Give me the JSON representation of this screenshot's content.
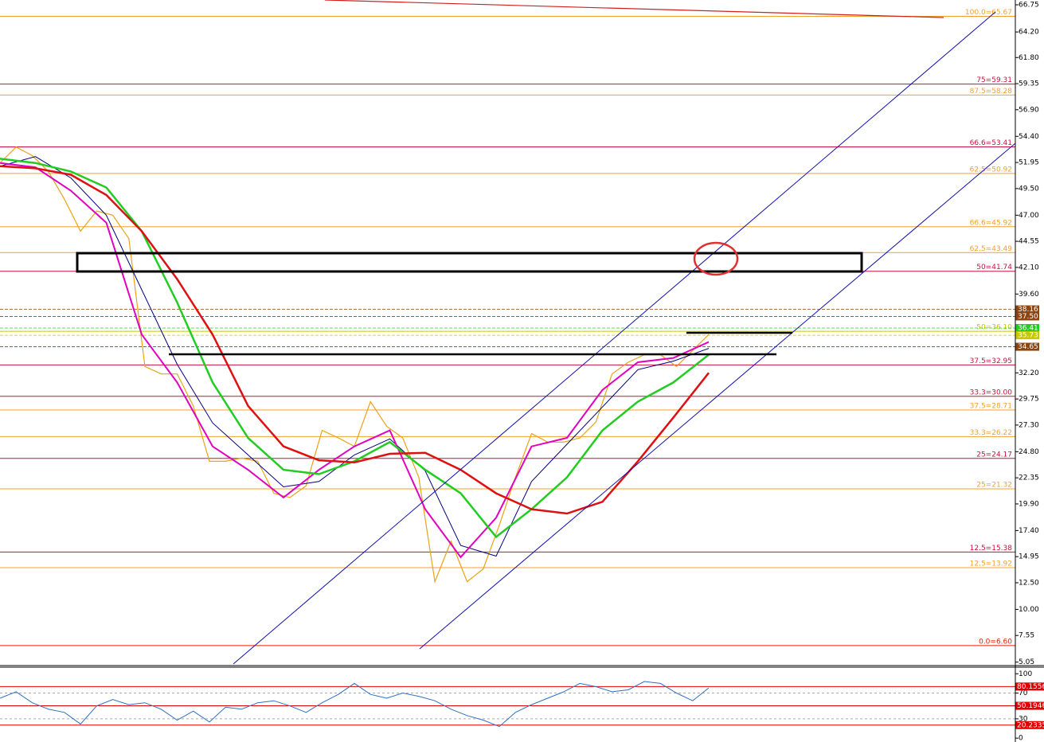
{
  "chart_data": [
    {
      "type": "line",
      "ylim": [
        4.8,
        67.2
      ],
      "yticks": [
        66.75,
        {
          "value": 64.2,
          "label": "64.20"
        },
        {
          "value": 61.8,
          "label": "61.80"
        },
        59.35,
        {
          "value": 56.9,
          "label": "56.90"
        },
        {
          "value": 54.4,
          "label": "54.40"
        },
        51.95,
        {
          "value": 49.5,
          "label": "49.50"
        },
        {
          "value": 47,
          "label": "47.00"
        },
        44.55,
        {
          "value": 42.1,
          "label": "42.10"
        },
        {
          "value": 39.6,
          "label": "39.60"
        },
        {
          "value": 32.2,
          "label": "32.20"
        },
        29.75,
        {
          "value": 27.3,
          "label": "27.30"
        },
        {
          "value": 24.8,
          "label": "24.80"
        },
        22.35,
        {
          "value": 19.9,
          "label": "19.90"
        },
        {
          "value": 17.4,
          "label": "17.40"
        },
        14.95,
        {
          "value": 12.5,
          "label": "12.50"
        },
        {
          "value": 10,
          "label": "10.00"
        },
        7.55,
        5.05
      ],
      "series": [
        {
          "color": "#e8a317",
          "width": 1.2,
          "values": [
            51.9,
            53.4,
            52.6,
            51.1,
            48.5,
            45.5,
            47.4,
            47.0,
            44.8,
            32.8,
            32.1,
            32.1,
            29.1,
            23.9,
            23.9,
            24.2,
            23.9,
            20.9,
            20.5,
            21.6,
            26.8,
            26.1,
            25.3,
            29.5,
            27.2,
            26.1,
            22.4,
            12.6,
            16.4,
            12.6,
            13.8,
            17.9,
            22.4,
            26.5,
            25.7,
            25.7,
            26.1,
            27.6,
            32.1,
            33.2,
            33.9,
            33.9,
            32.8,
            34.3,
            35.8
          ]
        },
        {
          "color": "#000080",
          "width": 1,
          "values": [
            51.6,
            52.5,
            50.5,
            47.0,
            40.0,
            33.0,
            27.5,
            24.5,
            21.5,
            22.0,
            24.5,
            26.0,
            23.0,
            16.0,
            15.0,
            22.0,
            25.5,
            29.0,
            32.5,
            33.3,
            34.5
          ]
        },
        {
          "color": "#e000c0",
          "width": 2,
          "values": [
            51.9,
            51.5,
            49.3,
            46.3,
            35.8,
            31.3,
            25.3,
            23.1,
            20.5,
            23.1,
            25.3,
            26.8,
            19.4,
            14.9,
            18.6,
            25.3,
            26.1,
            30.6,
            33.2,
            33.6,
            35.1
          ]
        },
        {
          "color": "#22cc22",
          "width": 2.5,
          "values": [
            52.3,
            51.9,
            51.1,
            49.6,
            45.5,
            38.8,
            31.3,
            26.1,
            23.1,
            22.7,
            23.9,
            25.7,
            23.1,
            20.9,
            16.8,
            19.4,
            22.4,
            26.8,
            29.5,
            31.3,
            33.9
          ]
        },
        {
          "color": "#dd1111",
          "width": 2.5,
          "values": [
            51.6,
            51.4,
            50.8,
            48.9,
            45.5,
            41.0,
            35.8,
            29.1,
            25.3,
            24.0,
            23.8,
            24.6,
            24.7,
            23.1,
            20.9,
            19.4,
            19.0,
            20.1,
            23.9,
            28.0,
            32.2
          ]
        }
      ],
      "levels": [
        {
          "label": "100.0=65.67",
          "value": 65.67,
          "color": "#f0a030"
        },
        {
          "label": "75=59.31",
          "value": 59.31,
          "color": "#c8103c"
        },
        {
          "label": "87.5=58.28",
          "value": 58.28,
          "color": "#f0a030"
        },
        {
          "label": "66.6=53.41",
          "value": 53.41,
          "color": "#c8103c"
        },
        {
          "label": "62.5=50.92",
          "value": 50.92,
          "color": "#f0a030"
        },
        {
          "label": "66.6=45.92",
          "value": 45.92,
          "color": "#f0a030"
        },
        {
          "label": "62.5=43.49",
          "value": 43.49,
          "color": "#f0a030"
        },
        {
          "label": "50=41.74",
          "value": 41.74,
          "color": "#c8103c"
        },
        {
          "label": "50=36.10",
          "value": 36.1,
          "color": "#c8c800"
        },
        {
          "label": "37.5=32.95",
          "value": 32.95,
          "color": "#c8103c"
        },
        {
          "label": "33.3=30.00",
          "value": 30,
          "color": "#c8103c"
        },
        {
          "label": "37.5=28.71",
          "value": 28.71,
          "color": "#f0a030"
        },
        {
          "label": "33.3=26.22",
          "value": 26.22,
          "color": "#f0a030"
        },
        {
          "label": "25=24.17",
          "value": 24.17,
          "color": "#c8103c"
        },
        {
          "label": "25=21.32",
          "value": 21.32,
          "color": "#f0a030"
        },
        {
          "label": "12.5=15.38",
          "value": 15.38,
          "color": "#c8103c"
        },
        {
          "label": "12.5=13.92",
          "value": 13.92,
          "color": "#f0a030"
        },
        {
          "label": "0.0=6.60",
          "value": 6.6,
          "color": "#e02000"
        }
      ],
      "price_labels": [
        {
          "value": 38.16,
          "color": "#8b4513"
        },
        {
          "value": {
            "value": 37.5,
            "label": "37.50"
          },
          "color": "#8b4513"
        },
        {
          "value": 36.41,
          "color": "#22cc22"
        },
        {
          "value": 35.73,
          "color": "#c8c800"
        },
        {
          "value": 34.65,
          "color": "#8b4513"
        }
      ]
    },
    {
      "type": "rsi",
      "ylim": [
        -6,
        109
      ],
      "yticks": [
        100,
        70,
        30,
        0
      ],
      "series": [
        {
          "color": "#3070c0",
          "values": [
            62,
            72,
            55,
            45,
            40,
            22,
            50,
            60,
            52,
            55,
            45,
            28,
            42,
            25,
            48,
            45,
            55,
            58,
            50,
            40,
            55,
            68,
            85,
            68,
            62,
            70,
            65,
            58,
            45,
            35,
            28,
            18,
            40,
            52,
            62,
            72,
            85,
            80,
            72,
            75,
            88,
            85,
            70,
            58,
            78
          ]
        }
      ],
      "levels": [
        80.1556,
        50.1946,
        20.2335
      ],
      "level_color": "#e00000"
    }
  ]
}
